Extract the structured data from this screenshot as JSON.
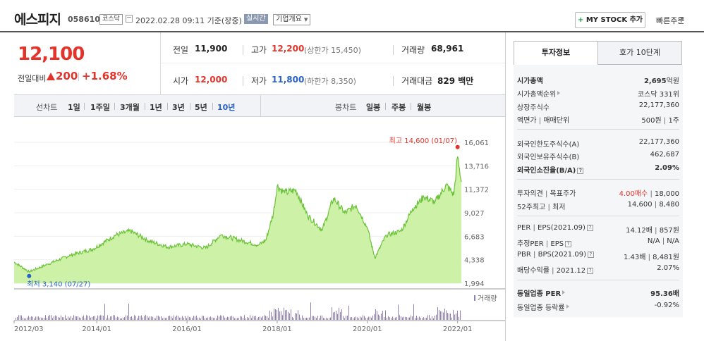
{
  "header": {
    "stock_name": "에스피지",
    "stock_code": "058610",
    "market": "코스닥",
    "datetime": "2022.02.28 09:11 기준(장중)",
    "realtime": "실시간",
    "company_overview": "기업개요",
    "mystock_label": "MY STOCK 추가",
    "quick_order": "빠른주문"
  },
  "price": {
    "current": "12,100",
    "change_label": "전일대비",
    "change_value": "200",
    "change_rate": "+1.68%",
    "quotes": {
      "prev_close_label": "전일",
      "prev_close": "11,900",
      "high_label": "고가",
      "high": "12,200",
      "upper_limit": "(상한가 15,450)",
      "volume_label": "거래량",
      "volume": "68,961",
      "open_label": "시가",
      "open": "12,000",
      "low_label": "저가",
      "low": "11,800",
      "lower_limit": "(하한가 8,350)",
      "amount_label": "거래대금",
      "amount": "829 백만"
    }
  },
  "chart_menu": {
    "line_chart": "선차트",
    "periods": [
      "1일",
      "1주일",
      "3개월",
      "1년",
      "3년",
      "5년",
      "10년"
    ],
    "active_period": "10년",
    "candle_chart": "봉차트",
    "candles": [
      "일봉",
      "주봉",
      "월봉"
    ]
  },
  "chart_data": {
    "type": "area",
    "y_ticks": [
      "16,061",
      "13,716",
      "11,372",
      "9,027",
      "6,683",
      "4,338",
      "1,994"
    ],
    "ylim": [
      1994,
      16061
    ],
    "x_ticks": [
      "2012/03",
      "2014/01",
      "2016/01",
      "2018/01",
      "2020/01",
      "2022/01"
    ],
    "high_note": "최고 14,600 (01/07)",
    "low_note": "최저 3,140 (07/27)",
    "volume_label": "거래량",
    "colors": {
      "line": "#6cc23a",
      "fill": "#c9ef9e",
      "high": "#e2342b",
      "low": "#2a62c7",
      "volume": "#8f7fb8"
    },
    "series": [
      {
        "x": "2012/03",
        "y": 4100
      },
      {
        "x": "2012/07",
        "y": 3140
      },
      {
        "x": "2012/12",
        "y": 3900
      },
      {
        "x": "2013/06",
        "y": 4800
      },
      {
        "x": "2013/12",
        "y": 5400
      },
      {
        "x": "2014/06",
        "y": 6800
      },
      {
        "x": "2014/10",
        "y": 7200
      },
      {
        "x": "2015/03",
        "y": 6200
      },
      {
        "x": "2015/08",
        "y": 5600
      },
      {
        "x": "2016/01",
        "y": 5900
      },
      {
        "x": "2016/06",
        "y": 5500
      },
      {
        "x": "2016/10",
        "y": 6800
      },
      {
        "x": "2017/03",
        "y": 6300
      },
      {
        "x": "2017/08",
        "y": 5800
      },
      {
        "x": "2017/10",
        "y": 6300
      },
      {
        "x": "2017/12",
        "y": 9000
      },
      {
        "x": "2018/01",
        "y": 11700
      },
      {
        "x": "2018/03",
        "y": 11000
      },
      {
        "x": "2018/06",
        "y": 11300
      },
      {
        "x": "2018/09",
        "y": 8800
      },
      {
        "x": "2019/01",
        "y": 7300
      },
      {
        "x": "2019/04",
        "y": 10500
      },
      {
        "x": "2019/07",
        "y": 9000
      },
      {
        "x": "2019/10",
        "y": 9800
      },
      {
        "x": "2020/01",
        "y": 7500
      },
      {
        "x": "2020/03",
        "y": 4500
      },
      {
        "x": "2020/06",
        "y": 6800
      },
      {
        "x": "2020/10",
        "y": 7200
      },
      {
        "x": "2021/01",
        "y": 9400
      },
      {
        "x": "2021/04",
        "y": 10600
      },
      {
        "x": "2021/07",
        "y": 10100
      },
      {
        "x": "2021/10",
        "y": 11800
      },
      {
        "x": "2021/12",
        "y": 10800
      },
      {
        "x": "2022/01",
        "y": 14600
      },
      {
        "x": "2022/02",
        "y": 12100
      }
    ]
  },
  "panel": {
    "tabs": [
      "투자정보",
      "호가 10단계"
    ],
    "market_cap_label": "시가총액",
    "market_cap": "2,695",
    "market_cap_unit": "억원",
    "market_cap_rank_label": "시가총액순위",
    "market_cap_rank": "코스닥 331위",
    "shares_label": "상장주식수",
    "shares": "22,177,360",
    "par_label": "액면가",
    "unit_label": "매매단위",
    "par_value": "500원",
    "unit_value": "1주",
    "foreign_limit_label": "외국인한도주식수(A)",
    "foreign_limit": "22,177,360",
    "foreign_hold_label": "외국인보유주식수(B)",
    "foreign_hold": "462,687",
    "foreign_rate_label": "외국인소진율(B/A)",
    "foreign_rate": "2.09%",
    "opinion_label": "투자의견",
    "target_label": "목표주가",
    "opinion": "4.00매수",
    "target": "18,000",
    "w52_high_label": "52주최고",
    "w52_low_label": "최저",
    "w52_high": "14,600",
    "w52_low": "8,480",
    "per_label": "PER",
    "eps_label": "EPS(2021.09)",
    "per": "14.12배",
    "eps": "857원",
    "est_per_label": "추정PER",
    "est_eps_label": "EPS",
    "est_per": "N/A",
    "est_eps": "N/A",
    "pbr_label": "PBR",
    "bps_label": "BPS(2021.09)",
    "pbr": "1.43배",
    "bps": "8,481원",
    "div_label": "배당수익률",
    "div_year": "2021.12",
    "div_yield": "2.07%",
    "ind_per_label": "동일업종 PER",
    "ind_per": "95.36배",
    "ind_rate_label": "동일업종 등락률",
    "ind_rate": "-0.92%"
  }
}
